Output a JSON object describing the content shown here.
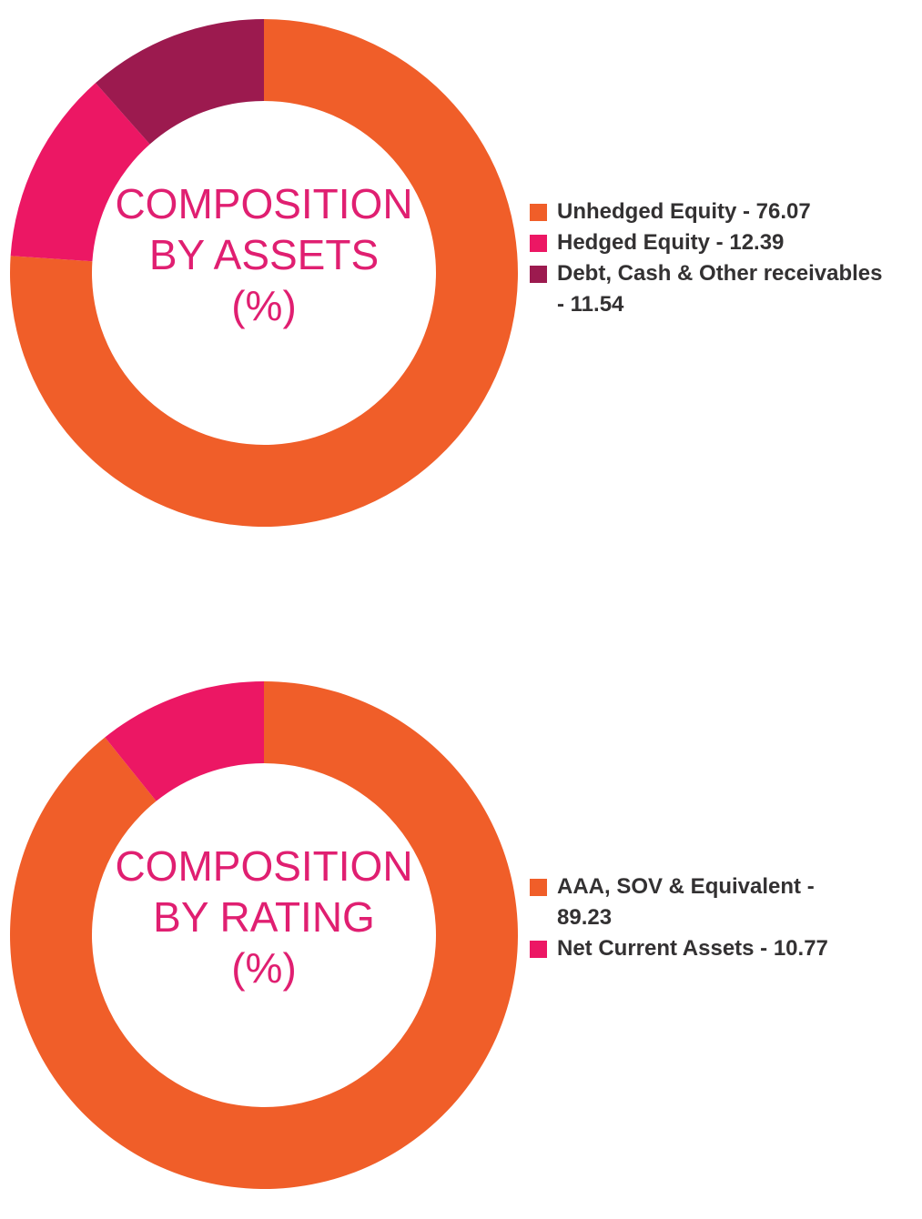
{
  "colors": {
    "orange": "#f05e29",
    "pink": "#ec1764",
    "maroon": "#9c1a4f",
    "title": "#e01f71",
    "legend_text": "#333132"
  },
  "chart_data": [
    {
      "type": "pie",
      "title": [
        "COMPOSITION",
        "BY ASSETS",
        "(%)"
      ],
      "categories": [
        "Unhedged Equity",
        "Hedged Equity",
        "Debt, Cash & Other receivables"
      ],
      "values": [
        76.07,
        12.39,
        11.54
      ],
      "colors": [
        "#f05e29",
        "#ec1764",
        "#9c1a4f"
      ],
      "legend": [
        {
          "lines": [
            "Unhedged Equity - 76.07"
          ],
          "color": "#f05e29"
        },
        {
          "lines": [
            "Hedged Equity - 12.39"
          ],
          "color": "#ec1764"
        },
        {
          "lines": [
            "Debt, Cash & Other receivables",
            "- 11.54"
          ],
          "color": "#9c1a4f"
        }
      ],
      "legend_position": "right"
    },
    {
      "type": "pie",
      "title": [
        "COMPOSITION",
        "BY RATING",
        "(%)"
      ],
      "categories": [
        "AAA, SOV & Equivalent",
        "Net Current Assets"
      ],
      "values": [
        89.23,
        10.77
      ],
      "colors": [
        "#f05e29",
        "#ec1764"
      ],
      "legend": [
        {
          "lines": [
            "AAA, SOV & Equivalent -",
            "89.23"
          ],
          "color": "#f05e29"
        },
        {
          "lines": [
            "Net Current Assets - 10.77"
          ],
          "color": "#ec1764"
        }
      ],
      "legend_position": "right"
    }
  ]
}
